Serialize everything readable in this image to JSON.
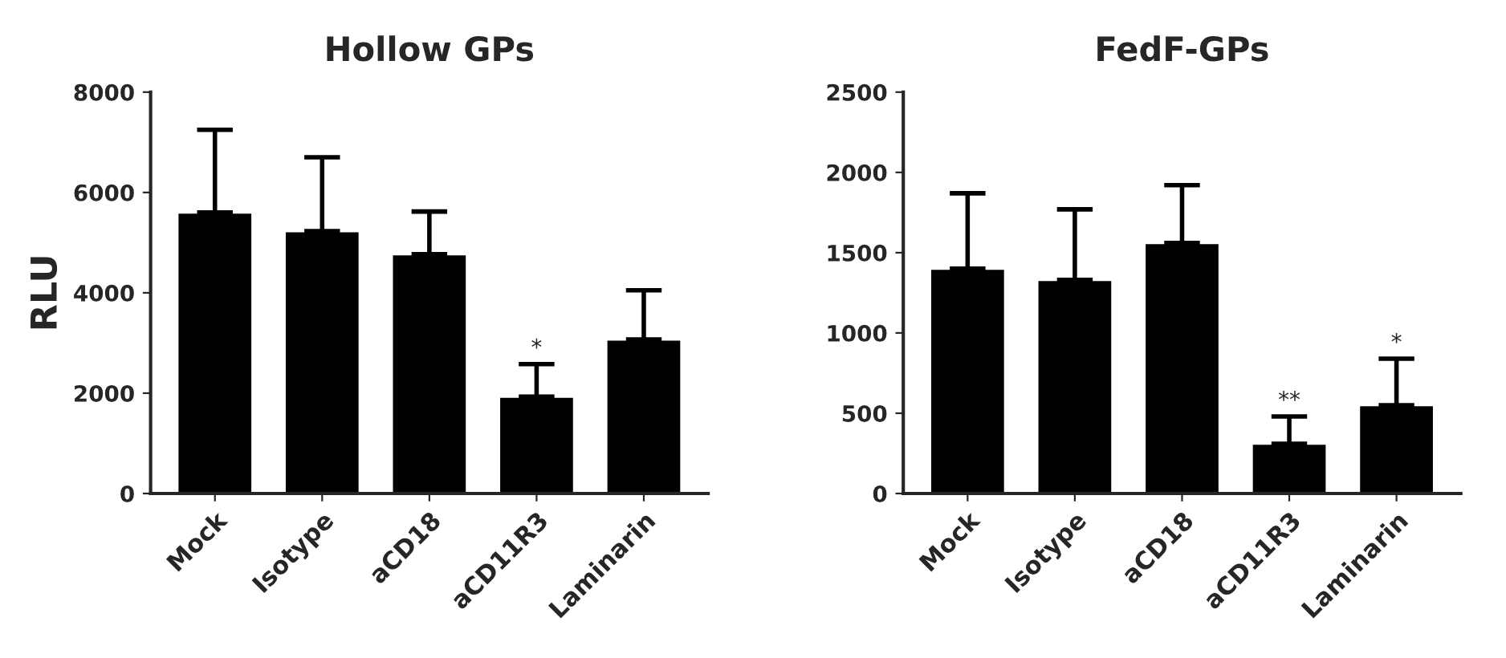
{
  "chart_data": [
    {
      "type": "bar",
      "title": "Hollow GPs",
      "ylabel": "RLU",
      "categories": [
        "Mock",
        "Isotype",
        "aCD18",
        "aCD11R3",
        "Laminarin"
      ],
      "values": [
        5600,
        5230,
        4770,
        1930,
        3070
      ],
      "color": "#000000",
      "errors": [
        [
          5600,
          7250
        ],
        [
          5230,
          6700
        ],
        [
          4770,
          5620
        ],
        [
          1930,
          2580
        ],
        [
          3070,
          4050
        ]
      ],
      "ylim": [
        0,
        8000
      ],
      "yticks": [
        0,
        2000,
        4000,
        6000,
        8000
      ],
      "grid": false,
      "annotations": [
        {
          "text": "*",
          "x": "aCD11R3",
          "y": 2580
        }
      ]
    },
    {
      "type": "bar",
      "title": "FedF-GPs",
      "categories": [
        "Mock",
        "Isotype",
        "aCD18",
        "aCD11R3",
        "Laminarin"
      ],
      "values": [
        1400,
        1330,
        1560,
        310,
        550
      ],
      "color": "#000000",
      "errors": [
        [
          1400,
          1870
        ],
        [
          1330,
          1770
        ],
        [
          1560,
          1920
        ],
        [
          310,
          480
        ],
        [
          550,
          840
        ]
      ],
      "ylim": [
        0,
        2500
      ],
      "yticks": [
        0,
        500,
        1000,
        1500,
        2000,
        2500
      ],
      "grid": false,
      "annotations": [
        {
          "text": "**",
          "x": "aCD11R3",
          "y": 480
        },
        {
          "text": "*",
          "x": "Laminarin",
          "y": 840
        }
      ]
    }
  ]
}
